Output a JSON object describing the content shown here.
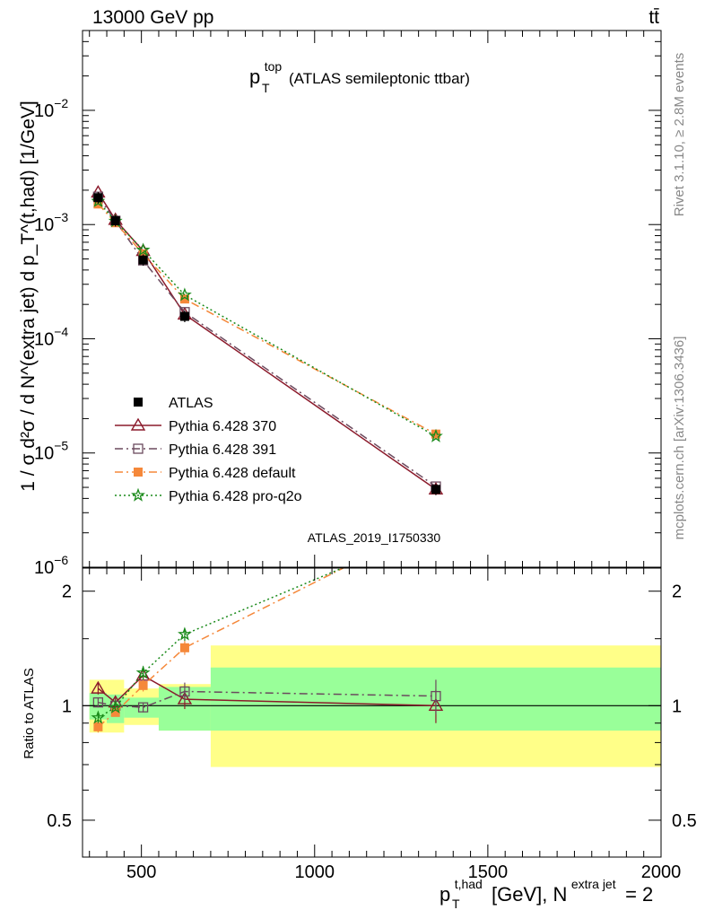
{
  "header": {
    "left": "13000 GeV pp",
    "right": "tt̄"
  },
  "main_panel": {
    "title_main": "p",
    "title_sup": "top",
    "title_sub": "T",
    "title_rest": "(ATLAS semileptonic ttbar)",
    "ylabel": "1 / σ d²σ / d N^(extra jet) d p_T^(t,had) [1/GeV]",
    "watermark": "ATLAS_2019_I1750330"
  },
  "ratio_panel": {
    "ylabel": "Ratio to ATLAS"
  },
  "xlabel": {
    "main": "p",
    "sup": "t,had",
    "sub": "T",
    "unit": "[GeV], N",
    "n_sup": "extra jet",
    "eq": "= 2"
  },
  "side_text": {
    "rivet": "Rivet 3.1.10, ≥ 2.8M events",
    "mcplots": "mcplots.cern.ch [arXiv:1306.3436]"
  },
  "legend": [
    {
      "label": "ATLAS",
      "color": "#000000",
      "marker": "filled-square",
      "dash": "none"
    },
    {
      "label": "Pythia 6.428 370",
      "color": "#8b1a2b",
      "marker": "open-triangle",
      "dash": "solid"
    },
    {
      "label": "Pythia 6.428 391",
      "color": "#6b4a5e",
      "marker": "open-square",
      "dash": "dashdot"
    },
    {
      "label": "Pythia 6.428 default",
      "color": "#f5883a",
      "marker": "filled-square",
      "dash": "dashdot"
    },
    {
      "label": "Pythia 6.428 pro-q2o",
      "color": "#1a8a1a",
      "marker": "star",
      "dash": "dotted"
    }
  ],
  "chart_data": {
    "type": "line",
    "xlim": [
      330,
      2000
    ],
    "ylim_main": [
      1e-06,
      0.05
    ],
    "ylim_ratio": [
      0.4,
      2.3
    ],
    "log_y_main": true,
    "log_y_ratio": true,
    "x_ticks": [
      500,
      1000,
      1500,
      2000
    ],
    "main_y_ticks": [
      {
        "value": 0.01,
        "base": "10",
        "exp": "−2"
      },
      {
        "value": 0.001,
        "base": "10",
        "exp": "−3"
      },
      {
        "value": 0.0001,
        "base": "10",
        "exp": "−4"
      },
      {
        "value": 1e-05,
        "base": "10",
        "exp": "−5"
      },
      {
        "value": 1e-06,
        "base": "10",
        "exp": "−6"
      }
    ],
    "ratio_y_ticks": [
      {
        "value": 0.5,
        "label": "0.5"
      },
      {
        "value": 1,
        "label": "1"
      },
      {
        "value": 2,
        "label": "2"
      }
    ],
    "x": [
      375,
      425,
      505,
      625,
      1350
    ],
    "bin_edges": [
      350,
      400,
      450,
      550,
      700,
      2000
    ],
    "data": {
      "name": "ATLAS",
      "values": [
        0.00172,
        0.00108,
        0.00049,
        0.000157,
        4.8e-06
      ],
      "band_inner": [
        [
          0.92,
          1.08
        ],
        [
          0.9,
          1.07
        ],
        [
          0.93,
          1.05
        ],
        [
          0.86,
          1.12
        ],
        [
          0.86,
          1.26
        ]
      ],
      "band_outer": [
        [
          0.85,
          1.17
        ],
        [
          0.85,
          1.17
        ],
        [
          0.89,
          1.11
        ],
        [
          0.86,
          1.14
        ],
        [
          0.69,
          1.44
        ]
      ]
    },
    "series": [
      {
        "name": "Pythia 6.428 370",
        "ratio": [
          1.11,
          1.02,
          1.2,
          1.04,
          1.0
        ],
        "err": [
          0.04,
          0.03,
          0.04,
          0.06,
          0.1
        ]
      },
      {
        "name": "Pythia 6.428 391",
        "ratio": [
          1.02,
          1.0,
          0.99,
          1.09,
          1.06
        ],
        "err": [
          0.03,
          0.02,
          0.03,
          0.06,
          0.11
        ]
      },
      {
        "name": "Pythia 6.428 default",
        "ratio": [
          0.88,
          0.96,
          1.13,
          1.42,
          3.05
        ],
        "err": [
          0.03,
          0.02,
          0.04,
          0.06,
          0.2
        ]
      },
      {
        "name": "Pythia 6.428 pro-q2o",
        "ratio": [
          0.93,
          0.99,
          1.22,
          1.54,
          2.92
        ],
        "err": [
          0.03,
          0.02,
          0.05,
          0.06,
          0.2
        ]
      }
    ]
  }
}
